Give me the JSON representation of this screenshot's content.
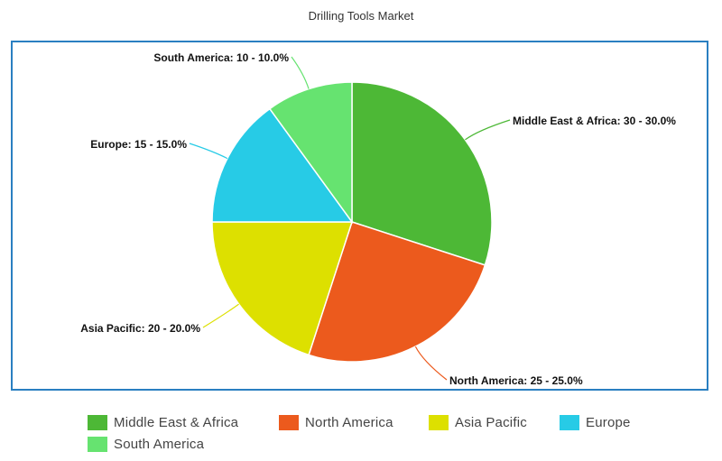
{
  "chart_data": {
    "type": "pie",
    "title": "Drilling Tools Market",
    "slices": [
      {
        "name": "Middle East & Africa",
        "value": 30,
        "label": "Middle East & Africa: 30 - 30.0%",
        "color": "#4db836"
      },
      {
        "name": "North America",
        "value": 25,
        "label": "North America: 25 - 25.0%",
        "color": "#ec5a1d"
      },
      {
        "name": "Asia Pacific",
        "value": 20,
        "label": "Asia Pacific: 20 - 20.0%",
        "color": "#dde000"
      },
      {
        "name": "Europe",
        "value": 15,
        "label": "Europe: 15 - 15.0%",
        "color": "#27cbe6"
      },
      {
        "name": "South America",
        "value": 10,
        "label": "South America: 10 - 10.0%",
        "color": "#66e370"
      }
    ],
    "legend_position": "bottom"
  },
  "frame_color": "#2a7fc1"
}
